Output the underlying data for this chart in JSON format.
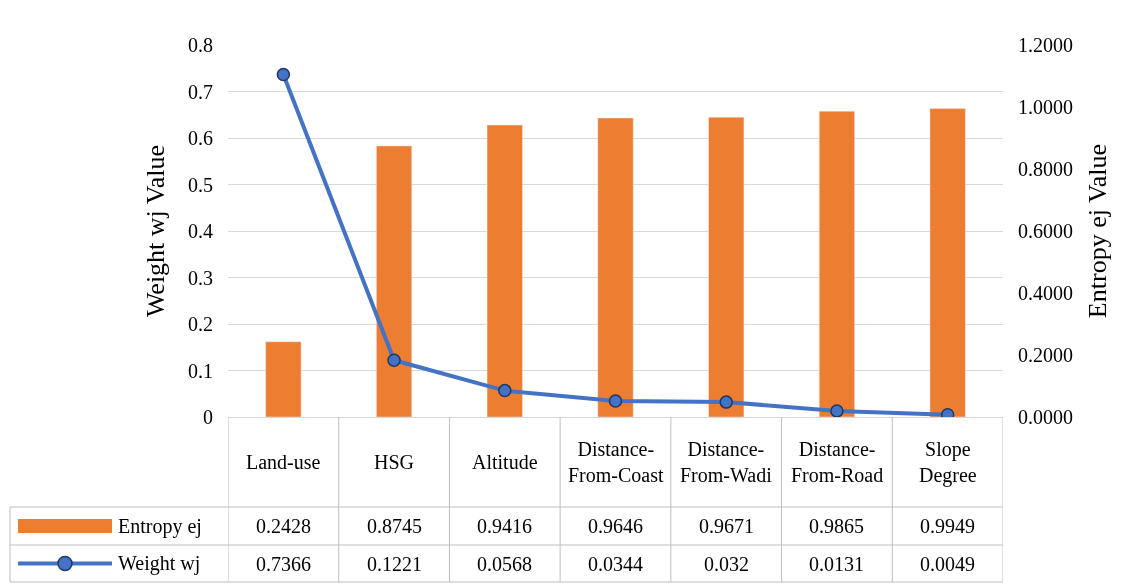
{
  "chart_data": {
    "type": "bar",
    "ylabel": "Weight wj Value",
    "y2label": "Entropy ej Value",
    "categories": [
      "Land-use",
      "HSG",
      "Altitude",
      "Distance-From-Coast",
      "Distance-From-Wadi",
      "Distance-From-Road",
      "Slope Degree"
    ],
    "series": [
      {
        "name": "Entropy ej",
        "axis": "y2",
        "color": "#ed7d31",
        "values": [
          0.2428,
          0.8745,
          0.9416,
          0.9646,
          0.9671,
          0.9865,
          0.9949
        ]
      },
      {
        "name": "Weight wj",
        "type": "line",
        "axis": "y",
        "color": "#4472c4",
        "marker": "circle",
        "values": [
          0.7366,
          0.1221,
          0.0568,
          0.0344,
          0.032,
          0.0131,
          0.0049
        ]
      }
    ],
    "ylim": [
      0,
      0.8
    ],
    "yticks": [
      0,
      0.1,
      0.2,
      0.3,
      0.4,
      0.5,
      0.6,
      0.7,
      0.8
    ],
    "y2lim": [
      0,
      1.2
    ],
    "y2ticks": [
      {
        "value": 0,
        "label": "0.0000"
      },
      {
        "value": 0.2,
        "label": "0.2000"
      },
      {
        "value": 0.4,
        "label": "0.4000"
      },
      {
        "value": 0.6,
        "label": "0.6000"
      },
      {
        "value": 0.8,
        "label": "0.8000"
      },
      {
        "value": 1.0,
        "label": "1.0000"
      },
      {
        "value": 1.2,
        "label": "1.2000"
      }
    ],
    "grid": "y",
    "legend": "bottom",
    "data_labels": true
  }
}
